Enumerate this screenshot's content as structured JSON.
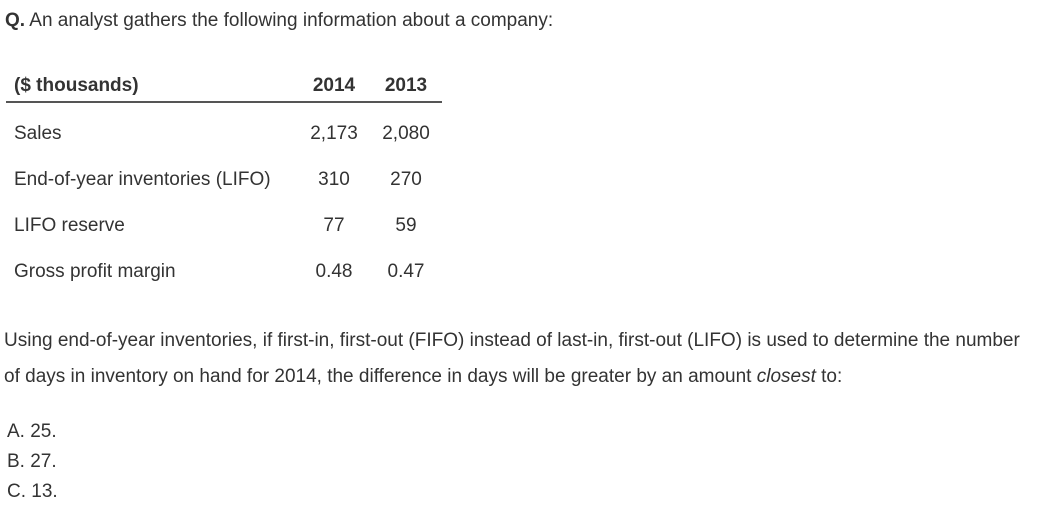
{
  "question": {
    "label": "Q.",
    "text": " An analyst gathers the following information about a company:"
  },
  "table": {
    "header": {
      "row_label": "($ thousands)",
      "years": [
        "2014",
        "2013"
      ]
    },
    "rows": [
      {
        "label": "Sales",
        "values": [
          "2,173",
          "2,080"
        ]
      },
      {
        "label": "End-of-year inventories (LIFO)",
        "values": [
          "310",
          "270"
        ]
      },
      {
        "label": "LIFO reserve",
        "values": [
          "77",
          "59"
        ]
      },
      {
        "label": "Gross profit margin",
        "values": [
          "0.48",
          "0.47"
        ]
      }
    ]
  },
  "prompt": {
    "before": "Using end-of-year inventories, if first-in, first-out (FIFO) instead of last-in, first-out (LIFO) is used to determine the number of days in inventory on hand for 2014, the difference in days will be greater by an amount ",
    "emphasis": "closest",
    "after": " to:"
  },
  "options": [
    {
      "letter": "A.",
      "value": "25."
    },
    {
      "letter": "B.",
      "value": "27."
    },
    {
      "letter": "C.",
      "value": "13."
    }
  ]
}
